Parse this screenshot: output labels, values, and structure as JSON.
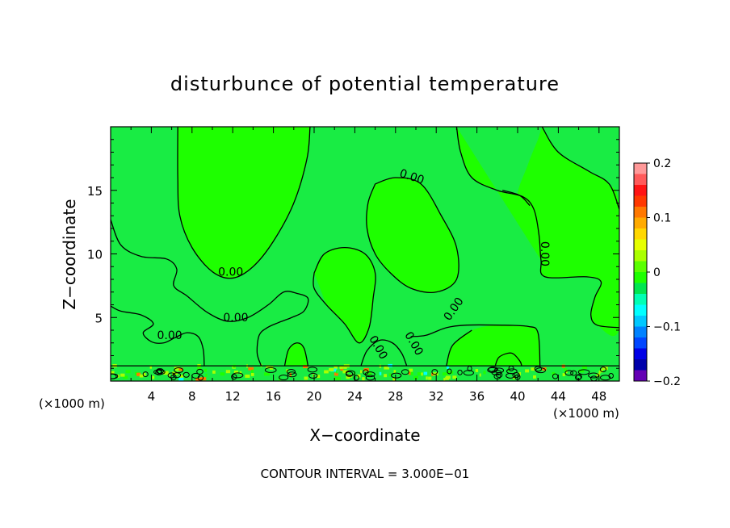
{
  "chart_data": {
    "type": "heatmap",
    "title": "disturbunce of potential temperature",
    "xlabel": "X−coordinate",
    "ylabel": "Z−coordinate",
    "x_unit_left": "(×1000 m)",
    "x_unit_right": "(×1000 m)",
    "footer": "CONTOUR INTERVAL = 3.000E−01",
    "xlim": [
      0,
      50
    ],
    "ylim": [
      0,
      20
    ],
    "x_ticks": [
      4,
      8,
      12,
      16,
      20,
      24,
      28,
      32,
      36,
      40,
      44,
      48
    ],
    "y_ticks": [
      5,
      10,
      15
    ],
    "contour_interval": 0.3,
    "contour_labels": [
      {
        "text": "0.00",
        "x": 11.8,
        "y": 8.3
      },
      {
        "text": "0.00",
        "x": 12.3,
        "y": 4.7
      },
      {
        "text": "0.00",
        "x": 5.8,
        "y": 3.3
      },
      {
        "text": "0.00",
        "x": 29.5,
        "y": 15.8
      },
      {
        "text": "0.00",
        "x": 42.3,
        "y": 10.0
      },
      {
        "text": "0.00",
        "x": 34.0,
        "y": 5.5
      },
      {
        "text": "0.00",
        "x": 29.5,
        "y": 2.8
      },
      {
        "text": "0.00",
        "x": 26.0,
        "y": 2.5
      }
    ],
    "colorbar": {
      "min": -0.2,
      "max": 0.2,
      "tick_labels": [
        "0.2",
        "0.1",
        "0",
        "−0.1",
        "−0.2"
      ],
      "tick_values": [
        0.2,
        0.1,
        0,
        -0.1,
        -0.2
      ],
      "colors": [
        "#ff9999",
        "#ff5a5a",
        "#ff1414",
        "#ff3800",
        "#ff7800",
        "#ffaa00",
        "#ffd700",
        "#e6ff00",
        "#aaff00",
        "#5aff00",
        "#1eff00",
        "#00e650",
        "#00ffb4",
        "#00ffff",
        "#00c8ff",
        "#0082ff",
        "#0046ff",
        "#0000e6",
        "#0000aa",
        "#6400b4"
      ]
    },
    "field_colors": {
      "background": "#19ec44",
      "positive": "#1eff00",
      "near_surface_positive": "#aaff00",
      "near_surface_strong": "#ff7800",
      "near_surface_negative": "#00ffff"
    }
  }
}
